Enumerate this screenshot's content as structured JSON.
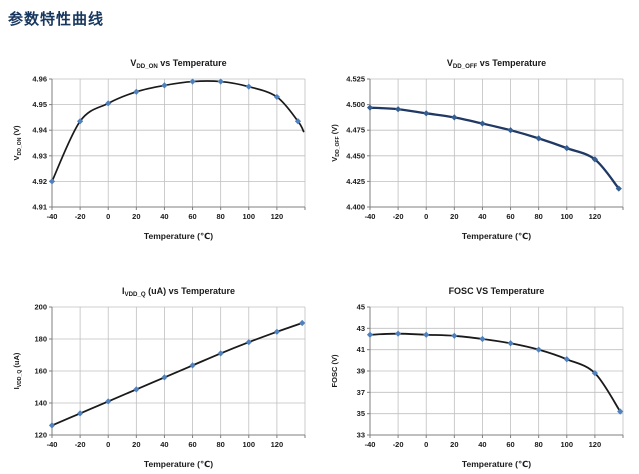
{
  "page": {
    "title": "参数特性曲线",
    "title_color": "#17375E",
    "background": "#FFFFFF"
  },
  "chart_data": [
    {
      "id": "vdd_on",
      "type": "line",
      "title": "V~DD_ON~ vs Temperature",
      "ylabel": "V~DD_ON~ (V)",
      "xlabel": "Temperature (℃)",
      "x": [
        -40,
        -20,
        0,
        20,
        40,
        60,
        80,
        100,
        120,
        135
      ],
      "y": [
        4.92,
        4.9435,
        4.9505,
        4.955,
        4.9575,
        4.959,
        4.959,
        4.957,
        4.953,
        4.9435
      ],
      "tail": [
        139,
        4.9395
      ],
      "xlim": [
        -40,
        140
      ],
      "xticks": [
        -40,
        -20,
        0,
        20,
        40,
        60,
        80,
        100,
        120
      ],
      "xgrid_step": 20,
      "ylim": [
        4.91,
        4.96
      ],
      "yticks": [
        4.91,
        4.92,
        4.93,
        4.94,
        4.95,
        4.96
      ],
      "ydecimals": 2,
      "line_color": "#1a1a1a",
      "line_width": 1.7,
      "marker_color": "#4F81BD",
      "grid": true,
      "legend": "none"
    },
    {
      "id": "vdd_off",
      "type": "line",
      "title": "V~DD_OFF~ vs Temperature",
      "ylabel": "V~DD_OFF~ (V)",
      "xlabel": "Temperature (℃)",
      "x": [
        -40,
        -20,
        0,
        20,
        40,
        60,
        80,
        100,
        120,
        137
      ],
      "y": [
        4.497,
        4.4955,
        4.4915,
        4.4875,
        4.4815,
        4.475,
        4.467,
        4.4575,
        4.4465,
        4.418
      ],
      "tail": null,
      "xlim": [
        -40,
        140
      ],
      "xticks": [
        -40,
        -20,
        0,
        20,
        40,
        60,
        80,
        100,
        120
      ],
      "xgrid_step": 20,
      "ylim": [
        4.4,
        4.525
      ],
      "yticks": [
        4.4,
        4.425,
        4.45,
        4.475,
        4.5,
        4.525
      ],
      "ydecimals": 3,
      "line_color": "#1F3864",
      "line_width": 2.3,
      "marker_color": "#365F91",
      "grid": true,
      "legend": "none"
    },
    {
      "id": "ivdd_q",
      "type": "line",
      "title": "I~VDD_Q~ (uA) vs Temperature",
      "ylabel": "I~VDD_Q~ (uA)",
      "xlabel": "Temperature (℃)",
      "x": [
        -40,
        -20,
        0,
        20,
        40,
        60,
        80,
        100,
        120,
        138
      ],
      "y": [
        126,
        133.5,
        141,
        148.5,
        156,
        163.5,
        171,
        178,
        184.5,
        190
      ],
      "tail": null,
      "xlim": [
        -40,
        140
      ],
      "xticks": [
        -40,
        -20,
        0,
        20,
        40,
        60,
        80,
        100,
        120
      ],
      "xgrid_step": 20,
      "ylim": [
        120,
        200
      ],
      "yticks": [
        120,
        140,
        160,
        180,
        200
      ],
      "ydecimals": 0,
      "line_color": "#1a1a1a",
      "line_width": 1.8,
      "marker_color": "#4F81BD",
      "grid": true,
      "legend": "none"
    },
    {
      "id": "fosc",
      "type": "line",
      "title": "FOSC VS Temperature",
      "ylabel": "FOSC (V)",
      "xlabel": "Temperature (℃)",
      "x": [
        -40,
        -20,
        0,
        20,
        40,
        60,
        80,
        100,
        120,
        138
      ],
      "y": [
        42.4,
        42.5,
        42.4,
        42.3,
        42.0,
        41.6,
        41.0,
        40.1,
        38.8,
        35.2
      ],
      "tail": null,
      "xlim": [
        -40,
        140
      ],
      "xticks": [
        -40,
        -20,
        0,
        20,
        40,
        60,
        80,
        100,
        120
      ],
      "xgrid_step": 20,
      "ylim": [
        33,
        45
      ],
      "yticks": [
        33,
        35,
        37,
        39,
        41,
        43,
        45
      ],
      "ydecimals": 0,
      "line_color": "#1a1a1a",
      "line_width": 1.8,
      "marker_color": "#4F81BD",
      "grid": true,
      "legend": "none"
    }
  ],
  "style": {
    "grid_color": "#BFBFBF",
    "axis_color": "#7f7f7f",
    "tick_text_color": "#1a1a1a",
    "title_text_color": "#1a1a1a"
  }
}
